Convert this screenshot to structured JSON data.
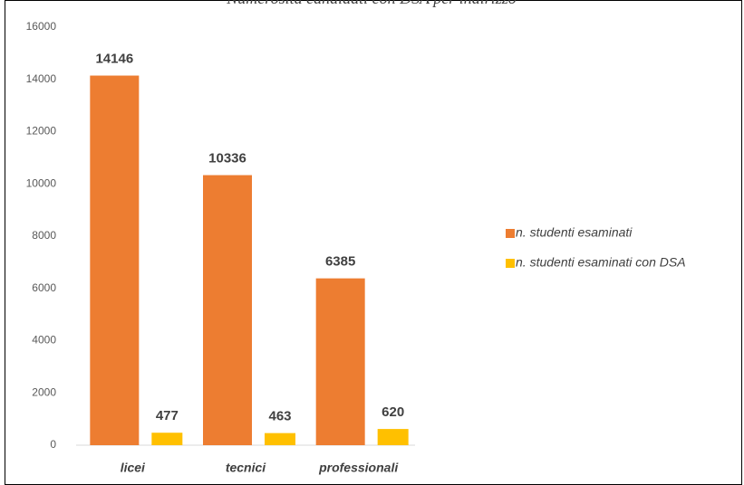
{
  "chart_data": {
    "type": "bar",
    "title": "Numerosità candidati con DSA per indirizzo",
    "categories": [
      "licei",
      "tecnici",
      "professionali"
    ],
    "series": [
      {
        "name": "n. studenti esaminati",
        "color": "#ed7d31",
        "values": [
          14146,
          10336,
          6385
        ]
      },
      {
        "name": "n. studenti esaminati con DSA",
        "color": "#ffc000",
        "values": [
          477,
          463,
          620
        ]
      }
    ],
    "ylim": [
      0,
      16000
    ],
    "yticks": [
      0,
      2000,
      4000,
      6000,
      8000,
      10000,
      12000,
      14000,
      16000
    ],
    "legend": "right"
  }
}
